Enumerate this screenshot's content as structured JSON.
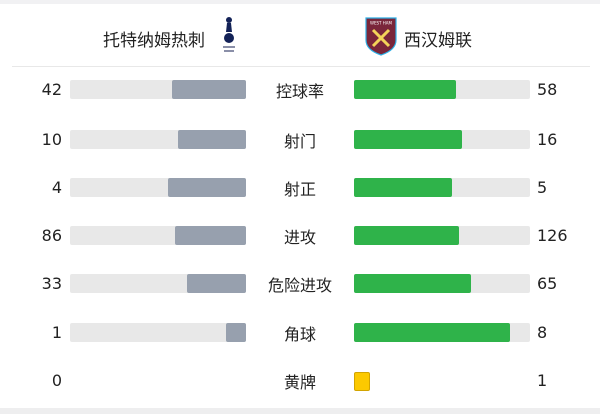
{
  "home": {
    "name": "托特纳姆热刺",
    "crest": "tottenham-crest"
  },
  "away": {
    "name": "西汉姆联",
    "crest": "west-ham-crest"
  },
  "colors": {
    "home_bar": "#97a0ae",
    "away_bar": "#2fb34a",
    "track": "#e8e8e8",
    "yellow_card": "#fcc900"
  },
  "stats": [
    {
      "label": "控球率",
      "home": "42",
      "away": "58"
    },
    {
      "label": "射门",
      "home": "10",
      "away": "16"
    },
    {
      "label": "射正",
      "home": "4",
      "away": "5"
    },
    {
      "label": "进攻",
      "home": "86",
      "away": "126"
    },
    {
      "label": "危险进攻",
      "home": "33",
      "away": "65"
    },
    {
      "label": "角球",
      "home": "1",
      "away": "8"
    },
    {
      "label": "黄牌",
      "home": "0",
      "away": "1",
      "icon": "yellow-card-icon"
    }
  ]
}
